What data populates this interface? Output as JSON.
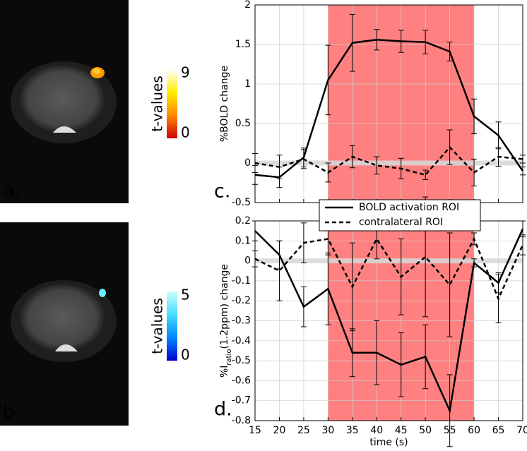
{
  "images": [
    {
      "label": "a.",
      "colorbar": {
        "label": "t-values",
        "ticks": [
          0,
          9
        ],
        "colors": [
          "#cc0000",
          "#ff8800",
          "#ffee00",
          "#ffffff"
        ]
      }
    },
    {
      "label": "b.",
      "colorbar": {
        "label": "t-values",
        "ticks": [
          0,
          5
        ],
        "colors": [
          "#0000cc",
          "#0088ff",
          "#44ddff",
          "#ccffff"
        ]
      }
    }
  ],
  "chart_data": [
    {
      "type": "line",
      "label": "c.",
      "ylabel": {
        "main": "%BOLD change"
      },
      "x": [
        15,
        20,
        25,
        30,
        35,
        40,
        45,
        50,
        55,
        60,
        65,
        70
      ],
      "xlim": [
        15,
        70
      ],
      "xticks": [
        15,
        20,
        25,
        30,
        35,
        40,
        45,
        50,
        55,
        60,
        65,
        70
      ],
      "show_xtick_labels": false,
      "ylim": [
        -0.5,
        2
      ],
      "yticks": [
        -0.5,
        0,
        0.5,
        1,
        1.5,
        2
      ],
      "grid": true,
      "shade": {
        "from": 30,
        "to": 60,
        "color": "#ff8080"
      },
      "series": [
        {
          "name": "BOLD activation ROI",
          "color": "#000000",
          "dash": false,
          "values": [
            -0.15,
            -0.18,
            0.07,
            1.05,
            1.52,
            1.56,
            1.54,
            1.53,
            1.41,
            0.59,
            0.35,
            -0.1
          ],
          "errors": [
            0.12,
            0.13,
            0.12,
            0.44,
            0.36,
            0.13,
            0.14,
            0.15,
            0.12,
            0.22,
            0.17,
            0.05
          ]
        },
        {
          "name": "contralateral ROI",
          "color": "#000000",
          "dash": true,
          "values": [
            0.0,
            -0.05,
            0.05,
            -0.12,
            0.08,
            -0.03,
            -0.07,
            -0.15,
            0.2,
            -0.12,
            0.08,
            0.05
          ],
          "errors": [
            0.12,
            0.15,
            0.12,
            0.12,
            0.14,
            0.11,
            0.13,
            0.06,
            0.22,
            0.17,
            0.12,
            0.05
          ]
        }
      ]
    },
    {
      "type": "line",
      "label": "d.",
      "ylabel": {
        "main": "%I",
        "sub": "ratio",
        "rest": "(1.2ppm) change"
      },
      "xlabel": "time (s)",
      "x": [
        15,
        20,
        25,
        30,
        35,
        40,
        45,
        50,
        55,
        60,
        65,
        70
      ],
      "xlim": [
        15,
        70
      ],
      "xticks": [
        15,
        20,
        25,
        30,
        35,
        40,
        45,
        50,
        55,
        60,
        65,
        70
      ],
      "show_xtick_labels": true,
      "ylim": [
        -0.8,
        0.2
      ],
      "yticks": [
        -0.8,
        -0.7,
        -0.6,
        -0.5,
        -0.4,
        -0.3,
        -0.2,
        -0.1,
        0,
        0.1,
        0.2
      ],
      "grid": true,
      "legend": "top",
      "shade": {
        "from": 30,
        "to": 60,
        "color": "#ff8080"
      },
      "series": [
        {
          "name": "BOLD activation ROI",
          "color": "#000000",
          "dash": false,
          "values": [
            0.15,
            0.03,
            -0.23,
            -0.14,
            -0.46,
            -0.46,
            -0.52,
            -0.48,
            -0.75,
            -0.01,
            -0.11,
            0.16
          ],
          "errors": [
            0.05,
            0.07,
            0.1,
            0.18,
            0.12,
            0.16,
            0.16,
            0.16,
            0.18,
            0.02,
            0.05,
            0.04
          ]
        },
        {
          "name": "contralateral ROI",
          "color": "#000000",
          "dash": true,
          "values": [
            0.01,
            -0.05,
            0.09,
            0.11,
            -0.13,
            0.11,
            -0.08,
            0.02,
            -0.12,
            0.11,
            -0.19,
            0.08
          ],
          "errors": [
            0.04,
            0.15,
            0.1,
            0.08,
            0.22,
            0.1,
            0.19,
            0.3,
            0.26,
            0.03,
            0.12,
            0.05
          ]
        }
      ]
    }
  ]
}
